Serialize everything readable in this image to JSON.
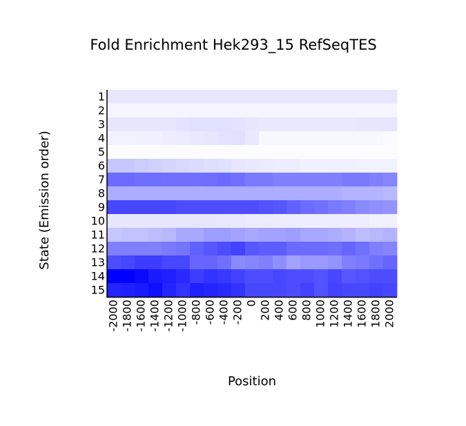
{
  "chart_data": {
    "type": "heatmap",
    "title": "Fold Enrichment Hek293_15 RefSeqTES",
    "xlabel": "Position",
    "ylabel": "State (Emission order)",
    "x": [
      -2000,
      -1800,
      -1600,
      -1400,
      -1200,
      -1000,
      -800,
      -600,
      -400,
      -200,
      0,
      200,
      400,
      600,
      800,
      1000,
      1200,
      1400,
      1600,
      1800,
      2000
    ],
    "categories": [
      "1",
      "2",
      "3",
      "4",
      "5",
      "6",
      "7",
      "8",
      "9",
      "10",
      "11",
      "12",
      "13",
      "14",
      "15"
    ],
    "zlim": [
      0,
      1
    ],
    "color_low": "#ffffff",
    "color_high": "#0000ff",
    "values": [
      [
        0.1,
        0.1,
        0.1,
        0.1,
        0.1,
        0.1,
        0.1,
        0.1,
        0.1,
        0.1,
        0.1,
        0.1,
        0.1,
        0.1,
        0.1,
        0.1,
        0.1,
        0.1,
        0.1,
        0.1,
        0.1
      ],
      [
        0.04,
        0.04,
        0.04,
        0.04,
        0.04,
        0.04,
        0.04,
        0.04,
        0.04,
        0.04,
        0.04,
        0.04,
        0.04,
        0.04,
        0.04,
        0.04,
        0.04,
        0.04,
        0.04,
        0.04,
        0.04
      ],
      [
        0.1,
        0.1,
        0.1,
        0.1,
        0.1,
        0.11,
        0.12,
        0.12,
        0.12,
        0.11,
        0.1,
        0.09,
        0.09,
        0.09,
        0.09,
        0.09,
        0.09,
        0.09,
        0.1,
        0.1,
        0.1
      ],
      [
        0.05,
        0.05,
        0.06,
        0.06,
        0.07,
        0.08,
        0.09,
        0.1,
        0.11,
        0.12,
        0.09,
        0.03,
        0.03,
        0.03,
        0.03,
        0.03,
        0.03,
        0.03,
        0.03,
        0.03,
        0.02
      ],
      [
        0.01,
        0.01,
        0.01,
        0.01,
        0.01,
        0.01,
        0.01,
        0.01,
        0.01,
        0.01,
        0.01,
        0.01,
        0.01,
        0.01,
        0.01,
        0.01,
        0.01,
        0.01,
        0.01,
        0.01,
        0.01
      ],
      [
        0.22,
        0.22,
        0.2,
        0.18,
        0.17,
        0.15,
        0.14,
        0.13,
        0.12,
        0.1,
        0.09,
        0.08,
        0.07,
        0.07,
        0.06,
        0.06,
        0.06,
        0.06,
        0.05,
        0.05,
        0.05
      ],
      [
        0.58,
        0.58,
        0.57,
        0.57,
        0.56,
        0.56,
        0.56,
        0.57,
        0.58,
        0.56,
        0.52,
        0.52,
        0.5,
        0.5,
        0.5,
        0.5,
        0.5,
        0.52,
        0.52,
        0.5,
        0.48
      ],
      [
        0.32,
        0.32,
        0.32,
        0.32,
        0.32,
        0.32,
        0.32,
        0.32,
        0.32,
        0.32,
        0.32,
        0.32,
        0.32,
        0.32,
        0.32,
        0.32,
        0.32,
        0.3,
        0.3,
        0.3,
        0.28
      ],
      [
        0.72,
        0.72,
        0.72,
        0.72,
        0.72,
        0.7,
        0.7,
        0.7,
        0.7,
        0.7,
        0.7,
        0.68,
        0.66,
        0.62,
        0.58,
        0.56,
        0.52,
        0.5,
        0.46,
        0.44,
        0.42
      ],
      [
        0.1,
        0.1,
        0.1,
        0.1,
        0.1,
        0.1,
        0.1,
        0.1,
        0.09,
        0.09,
        0.08,
        0.08,
        0.07,
        0.07,
        0.07,
        0.07,
        0.07,
        0.07,
        0.07,
        0.06,
        0.06
      ],
      [
        0.22,
        0.24,
        0.24,
        0.26,
        0.28,
        0.34,
        0.34,
        0.38,
        0.38,
        0.36,
        0.34,
        0.36,
        0.36,
        0.38,
        0.34,
        0.34,
        0.32,
        0.3,
        0.26,
        0.28,
        0.3
      ],
      [
        0.5,
        0.5,
        0.5,
        0.5,
        0.52,
        0.54,
        0.62,
        0.66,
        0.7,
        0.74,
        0.66,
        0.64,
        0.64,
        0.58,
        0.58,
        0.58,
        0.56,
        0.6,
        0.56,
        0.5,
        0.48
      ],
      [
        0.7,
        0.72,
        0.76,
        0.76,
        0.72,
        0.72,
        0.6,
        0.6,
        0.56,
        0.46,
        0.48,
        0.5,
        0.44,
        0.36,
        0.4,
        0.4,
        0.42,
        0.5,
        0.52,
        0.56,
        0.6
      ],
      [
        1.0,
        1.0,
        0.96,
        0.9,
        0.88,
        0.84,
        0.76,
        0.8,
        0.78,
        0.74,
        0.7,
        0.7,
        0.72,
        0.7,
        0.7,
        0.68,
        0.72,
        0.66,
        0.68,
        0.7,
        0.7
      ],
      [
        0.86,
        0.88,
        0.9,
        0.94,
        0.86,
        0.8,
        0.88,
        0.86,
        0.84,
        0.8,
        0.72,
        0.72,
        0.72,
        0.7,
        0.74,
        0.68,
        0.74,
        0.72,
        0.72,
        0.74,
        0.72
      ]
    ]
  }
}
